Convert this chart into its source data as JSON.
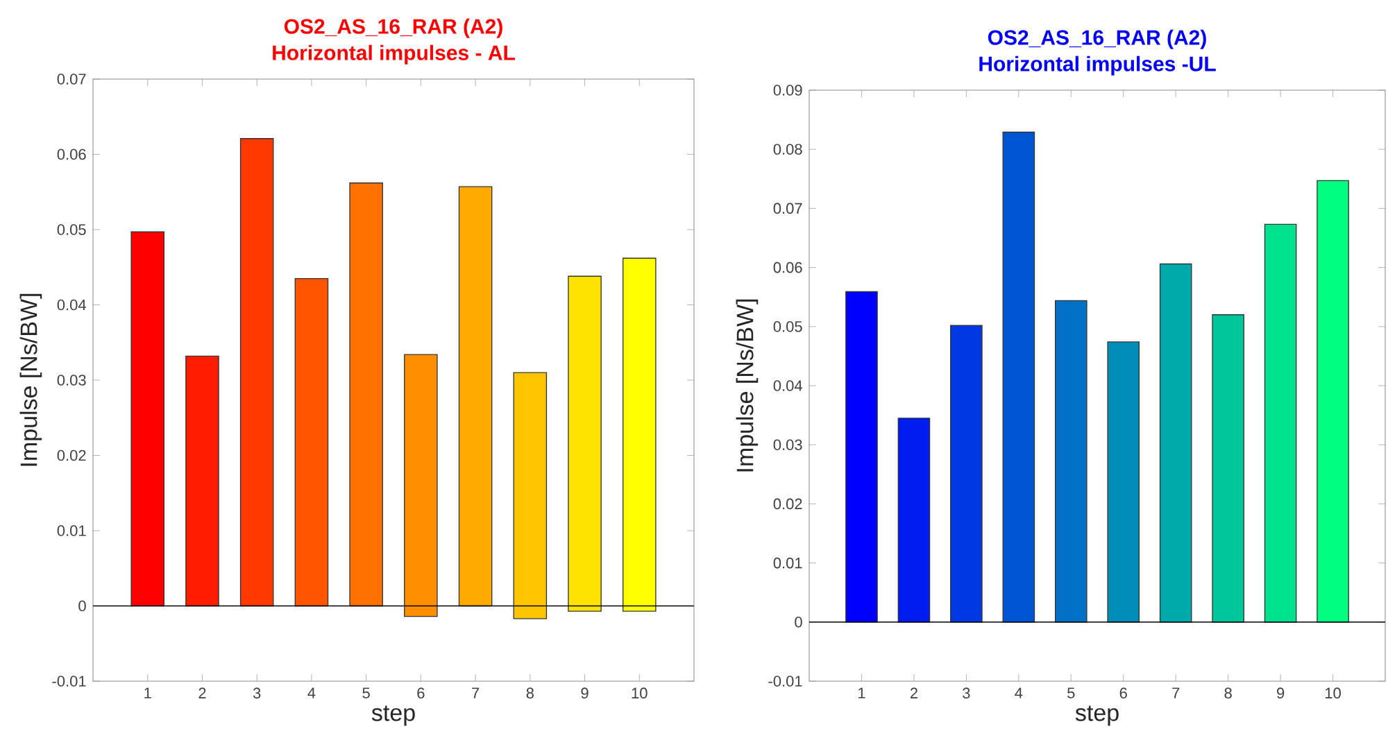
{
  "chart_data": [
    {
      "type": "bar",
      "title": "OS2_AS_16_RAR (A2)",
      "subtitle": "Horizontal impulses - AL",
      "xlabel": "step",
      "ylabel": "Impulse [Ns/BW]",
      "categories": [
        "1",
        "2",
        "3",
        "4",
        "5",
        "6",
        "7",
        "8",
        "9",
        "10"
      ],
      "base": [
        0,
        0,
        0,
        0,
        0,
        -0.0014,
        0,
        -0.0017,
        -0.0007,
        -0.0007
      ],
      "values": [
        0.0497,
        0.0332,
        0.0621,
        0.0435,
        0.0562,
        0.0348,
        0.0557,
        0.0327,
        0.0445,
        0.0469
      ],
      "colors": [
        "#ff0000",
        "#ff1c00",
        "#ff3900",
        "#ff5500",
        "#ff7100",
        "#ff8e00",
        "#ffaa00",
        "#ffc600",
        "#ffe300",
        "#ffff00"
      ],
      "ylim": [
        -0.01,
        0.07
      ],
      "yticks": [
        -0.01,
        0,
        0.01,
        0.02,
        0.03,
        0.04,
        0.05,
        0.06,
        0.07
      ]
    },
    {
      "type": "bar",
      "title": "OS2_AS_16_RAR (A2)",
      "subtitle": "Horizontal impulses -UL",
      "xlabel": "step",
      "ylabel": "Impulse [Ns/BW]",
      "categories": [
        "1",
        "2",
        "3",
        "4",
        "5",
        "6",
        "7",
        "8",
        "9",
        "10"
      ],
      "values": [
        0.0559,
        0.0345,
        0.0502,
        0.0829,
        0.0544,
        0.0474,
        0.0606,
        0.052,
        0.0673,
        0.0747
      ],
      "colors": [
        "#0000ff",
        "#001cf1",
        "#0039e3",
        "#0055d5",
        "#0071c7",
        "#008eb8",
        "#00aaaa",
        "#00c69c",
        "#00e38e",
        "#00ff80"
      ],
      "ylim": [
        -0.01,
        0.09
      ],
      "yticks": [
        -0.01,
        0,
        0.01,
        0.02,
        0.03,
        0.04,
        0.05,
        0.06,
        0.07,
        0.08,
        0.09
      ]
    }
  ]
}
